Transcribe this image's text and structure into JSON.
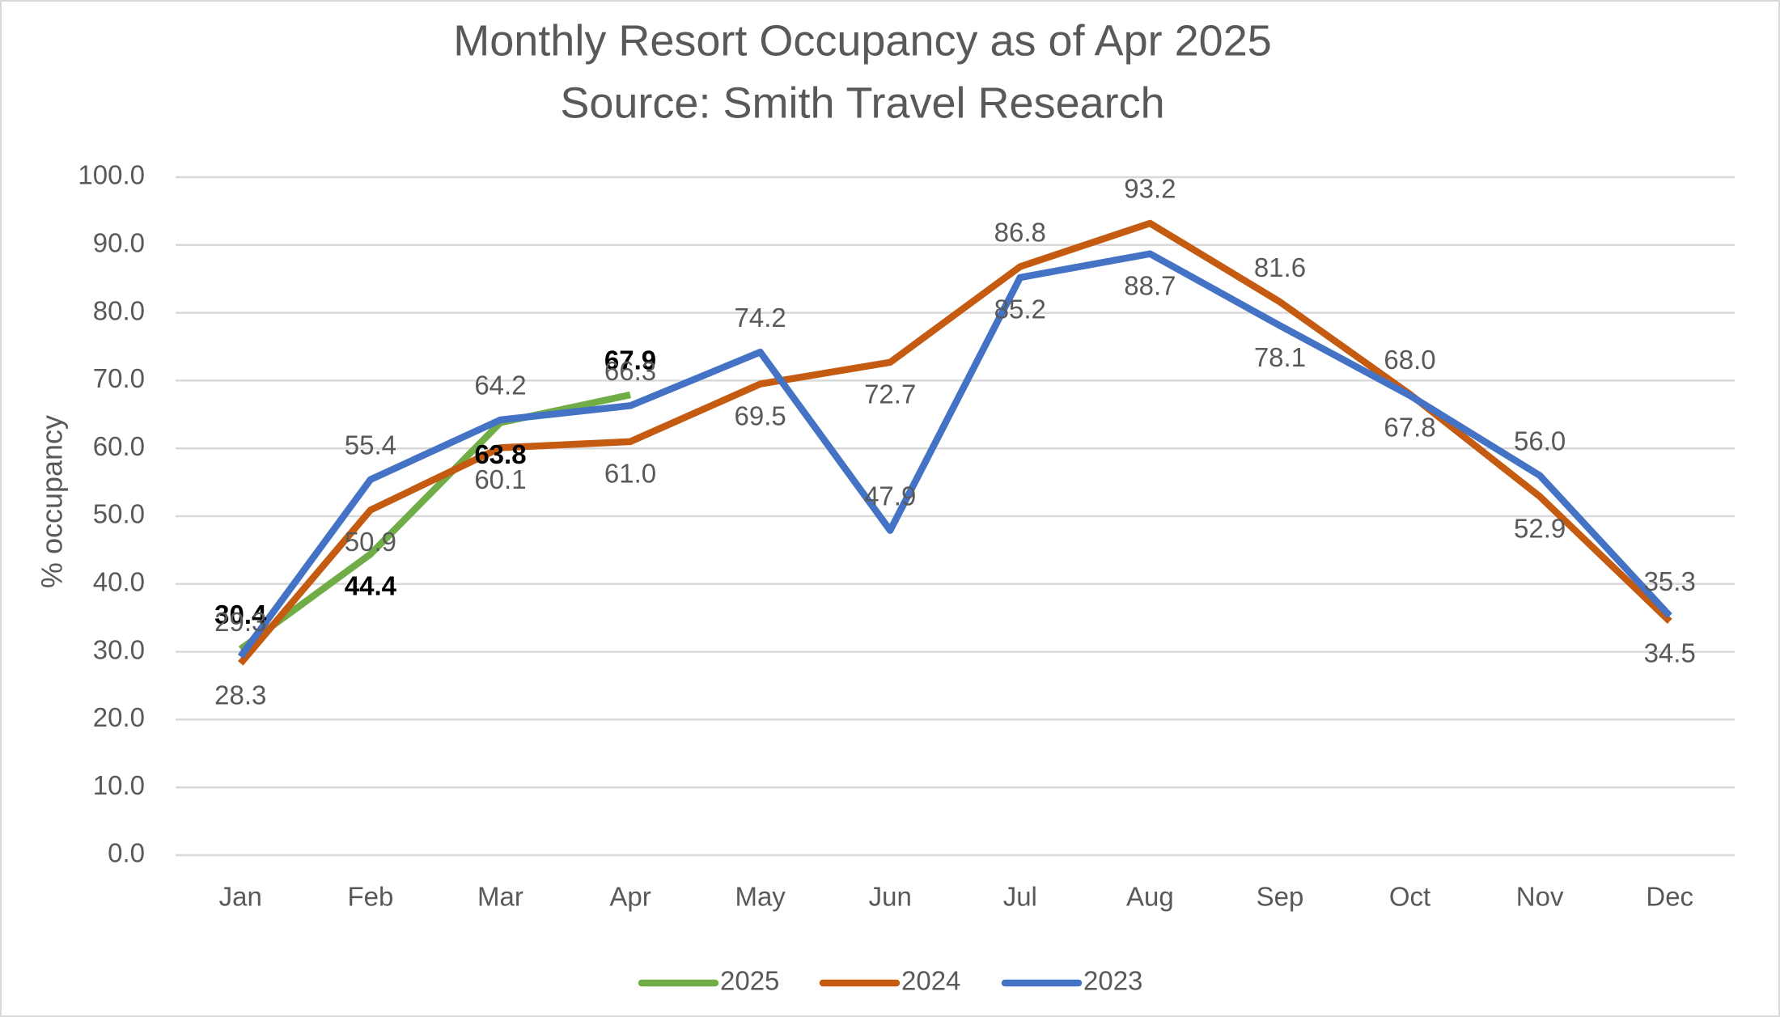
{
  "chart_data": {
    "type": "line",
    "title": "Monthly Resort Occupancy as of Apr 2025",
    "subtitle": "Source: Smith Travel Research",
    "y_label": "% occupancy",
    "categories": [
      "Jan",
      "Feb",
      "Mar",
      "Apr",
      "May",
      "Jun",
      "Jul",
      "Aug",
      "Sep",
      "Oct",
      "Nov",
      "Dec"
    ],
    "series": [
      {
        "name": "2025",
        "color": "#70ad47",
        "values": [
          30.4,
          44.4,
          63.8,
          67.9,
          null,
          null,
          null,
          null,
          null,
          null,
          null,
          null
        ],
        "value_labels": [
          "30.4",
          "44.4",
          "63.8",
          "67.9",
          null,
          null,
          null,
          null,
          null,
          null,
          null,
          null
        ]
      },
      {
        "name": "2024",
        "color": "#c55a11",
        "values": [
          28.3,
          50.9,
          60.1,
          61.0,
          69.5,
          72.7,
          86.8,
          93.2,
          81.6,
          68.0,
          52.9,
          34.5
        ],
        "value_labels": [
          "28.3",
          "50.9",
          "60.1",
          "61.0",
          "69.5",
          "72.7",
          "86.8",
          "93.2",
          "81.6",
          "68.0",
          "52.9",
          "34.5"
        ]
      },
      {
        "name": "2023",
        "color": "#4472c4",
        "values": [
          29.3,
          55.4,
          64.2,
          66.3,
          74.2,
          47.9,
          85.2,
          88.7,
          78.1,
          67.8,
          56.0,
          35.3
        ],
        "value_labels": [
          "29.3",
          "55.4",
          "64.2",
          "66.3",
          "74.2",
          "47.9",
          "85.2",
          "88.7",
          "78.1",
          "67.8",
          "56.0",
          "35.3"
        ]
      }
    ],
    "ylim": [
      0,
      100
    ],
    "yticks": [
      {
        "value": 0,
        "label": "0.0"
      },
      {
        "value": 10,
        "label": "10.0"
      },
      {
        "value": 20,
        "label": "20.0"
      },
      {
        "value": 30,
        "label": "30.0"
      },
      {
        "value": 40,
        "label": "40.0"
      },
      {
        "value": 50,
        "label": "50.0"
      },
      {
        "value": 60,
        "label": "60.0"
      },
      {
        "value": 70,
        "label": "70.0"
      },
      {
        "value": 80,
        "label": "80.0"
      },
      {
        "value": 90,
        "label": "90.0"
      },
      {
        "value": 100,
        "label": "100.0"
      }
    ],
    "grid": true,
    "legend": "bottom"
  }
}
